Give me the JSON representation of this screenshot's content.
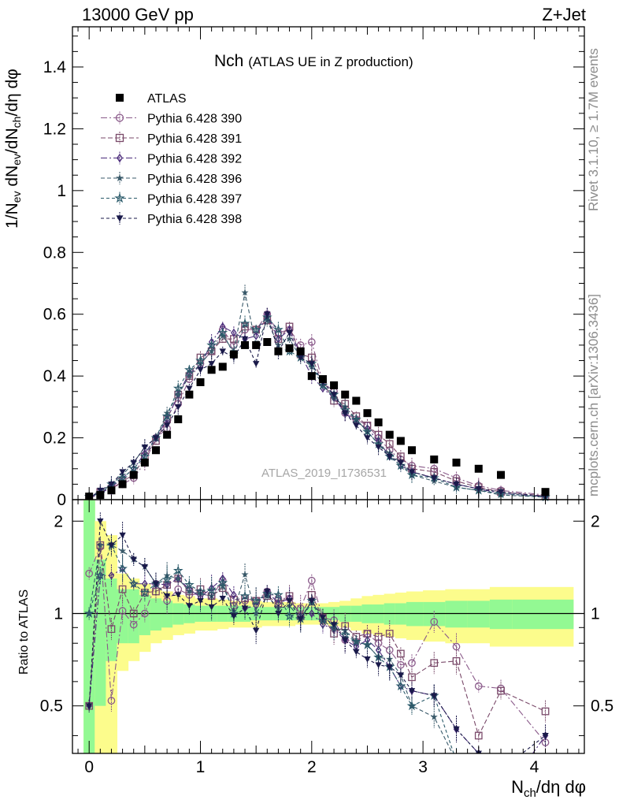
{
  "header": {
    "left": "13000 GeV pp",
    "right": "Z+Jet"
  },
  "plot_title": {
    "main": "Nch",
    "sub": "(ATLAS UE in Z production)"
  },
  "side_labels": {
    "rivet": "Rivet 3.1.10, ≥ 1.7M events",
    "mcplots": "mcplots.cern.ch [arXiv:1306.3436]"
  },
  "analysis_id": "ATLAS_2019_I1736531",
  "axes": {
    "ylabel_main": {
      "p1": "1/N",
      "s1": "ev",
      "p2": " dN",
      "s2": "ev",
      "p3": "/dN",
      "s3": "ch",
      "p4": "/dη dφ"
    },
    "ylabel_ratio": "Ratio to ATLAS",
    "xlabel": {
      "p1": "N",
      "s1": "ch",
      "p2": "/dη dφ"
    }
  },
  "colors": {
    "data": "#000000",
    "band_inner": "#93f993",
    "band_outer": "#fcfc8c",
    "s390": "#8a5a8a",
    "s391": "#7a4a6a",
    "s392": "#4a2a7a",
    "s396": "#3a5a6a",
    "s397": "#2a5a6a",
    "s398": "#1a1a4a"
  },
  "chart_data": {
    "type": "scatter",
    "title": "Nch (ATLAS UE in Z production)",
    "xlabel": "Nch/dη dφ",
    "ylabel": "1/Nev dNev/dNch/dη dφ",
    "xlim": [
      -0.15,
      4.45
    ],
    "ylim": [
      0,
      1.53
    ],
    "ratio_ylim": [
      0.35,
      2.35
    ],
    "x_ticks": [
      0,
      1,
      2,
      3,
      4
    ],
    "y_ticks": [
      0,
      0.2,
      0.4,
      0.6,
      0.8,
      1,
      1.2,
      1.4
    ],
    "ratio_ticks": [
      0.5,
      1,
      2
    ],
    "x": [
      0.0,
      0.1,
      0.2,
      0.3,
      0.4,
      0.5,
      0.6,
      0.7,
      0.8,
      0.9,
      1.0,
      1.1,
      1.2,
      1.3,
      1.4,
      1.5,
      1.6,
      1.7,
      1.8,
      1.9,
      2.0,
      2.1,
      2.2,
      2.3,
      2.4,
      2.5,
      2.6,
      2.7,
      2.8,
      2.9,
      3.1,
      3.3,
      3.5,
      3.7,
      4.1
    ],
    "series": [
      {
        "name": "ATLAS",
        "style": "square",
        "values": [
          0.01,
          0.015,
          0.03,
          0.05,
          0.08,
          0.12,
          0.16,
          0.21,
          0.26,
          0.34,
          0.38,
          0.42,
          0.43,
          0.47,
          0.5,
          0.5,
          0.51,
          0.48,
          0.49,
          0.48,
          0.4,
          0.39,
          0.37,
          0.34,
          0.32,
          0.28,
          0.25,
          0.21,
          0.19,
          0.16,
          0.13,
          0.12,
          0.1,
          0.08,
          0.025
        ]
      },
      {
        "name": "Pythia 6.428 390",
        "style": "circle",
        "colorKey": "s390",
        "dash": "8 3 2 3",
        "values": [
          0.005,
          0.025,
          0.04,
          0.05,
          0.07,
          0.12,
          0.2,
          0.23,
          0.31,
          0.39,
          0.44,
          0.48,
          0.55,
          0.5,
          0.55,
          0.55,
          0.6,
          0.54,
          0.55,
          0.5,
          0.51,
          0.38,
          0.35,
          0.28,
          0.26,
          0.24,
          0.2,
          0.16,
          0.13,
          0.11,
          0.1,
          0.07,
          0.045,
          0.03,
          0.015
        ]
      },
      {
        "name": "Pythia 6.428 391",
        "style": "square-open",
        "colorKey": "s391",
        "dash": "6 3",
        "values": [
          0.005,
          0.025,
          0.035,
          0.06,
          0.08,
          0.14,
          0.19,
          0.26,
          0.34,
          0.4,
          0.46,
          0.48,
          0.52,
          0.52,
          0.56,
          0.55,
          0.58,
          0.52,
          0.56,
          0.47,
          0.46,
          0.38,
          0.32,
          0.31,
          0.27,
          0.24,
          0.21,
          0.18,
          0.14,
          0.1,
          0.09,
          0.06,
          0.04,
          0.025,
          0.012
        ]
      },
      {
        "name": "Pythia 6.428 392",
        "style": "diamond",
        "colorKey": "s392",
        "dash": "8 3 2 3",
        "values": [
          0.005,
          0.02,
          0.04,
          0.07,
          0.1,
          0.15,
          0.2,
          0.26,
          0.34,
          0.41,
          0.43,
          0.51,
          0.56,
          0.54,
          0.52,
          0.53,
          0.6,
          0.52,
          0.55,
          0.47,
          0.4,
          0.36,
          0.33,
          0.28,
          0.25,
          0.23,
          0.19,
          0.14,
          0.11,
          0.09,
          0.07,
          0.05,
          0.035,
          0.02,
          0.01
        ]
      },
      {
        "name": "Pythia 6.428 396",
        "style": "star",
        "colorKey": "s396",
        "dash": "5 3",
        "values": [
          0.01,
          0.025,
          0.05,
          0.08,
          0.12,
          0.17,
          0.2,
          0.28,
          0.34,
          0.4,
          0.44,
          0.48,
          0.53,
          0.48,
          0.67,
          0.5,
          0.58,
          0.5,
          0.52,
          0.46,
          0.43,
          0.37,
          0.33,
          0.3,
          0.26,
          0.22,
          0.18,
          0.15,
          0.12,
          0.08,
          0.06,
          0.04,
          0.03,
          0.015,
          0.008
        ]
      },
      {
        "name": "Pythia 6.428 397",
        "style": "star-open",
        "colorKey": "s397",
        "dash": "4 3",
        "values": [
          0.01,
          0.02,
          0.05,
          0.07,
          0.1,
          0.14,
          0.2,
          0.27,
          0.36,
          0.42,
          0.45,
          0.5,
          0.54,
          0.47,
          0.57,
          0.55,
          0.59,
          0.55,
          0.48,
          0.46,
          0.44,
          0.37,
          0.34,
          0.29,
          0.26,
          0.22,
          0.18,
          0.14,
          0.11,
          0.08,
          0.07,
          0.04,
          0.03,
          0.02,
          0.008
        ]
      },
      {
        "name": "Pythia 6.428 398",
        "style": "triangle-down",
        "colorKey": "s398",
        "dash": "4 3",
        "values": [
          0.005,
          0.03,
          0.05,
          0.09,
          0.12,
          0.17,
          0.2,
          0.24,
          0.3,
          0.36,
          0.42,
          0.44,
          0.48,
          0.46,
          0.52,
          0.44,
          0.6,
          0.48,
          0.54,
          0.46,
          0.44,
          0.38,
          0.34,
          0.28,
          0.24,
          0.2,
          0.17,
          0.14,
          0.12,
          0.09,
          0.07,
          0.05,
          0.035,
          0.025,
          0.01
        ]
      }
    ],
    "ratio_series": [
      {
        "name": "Pythia 6.428 390",
        "values": [
          1.35,
          1.65,
          0.52,
          1.02,
          0.92,
          1.0,
          1.25,
          1.1,
          1.2,
          1.15,
          1.16,
          1.14,
          1.28,
          1.06,
          1.1,
          1.1,
          1.18,
          1.12,
          1.12,
          1.04,
          1.28,
          0.97,
          0.95,
          0.82,
          0.81,
          0.86,
          0.8,
          0.76,
          0.68,
          0.69,
          0.94,
          0.78,
          0.58,
          0.57,
          0.38
        ]
      },
      {
        "name": "Pythia 6.428 391",
        "values": [
          0.5,
          1.67,
          0.89,
          1.2,
          1.0,
          1.17,
          1.18,
          1.24,
          1.3,
          1.18,
          1.2,
          1.14,
          1.21,
          1.11,
          1.12,
          1.1,
          1.14,
          1.08,
          1.14,
          0.98,
          1.15,
          0.97,
          0.86,
          0.91,
          0.84,
          0.86,
          0.84,
          0.86,
          0.74,
          0.62,
          0.69,
          0.7,
          0.4,
          0.56,
          0.48
        ]
      },
      {
        "name": "Pythia 6.428 392",
        "values": [
          0.5,
          1.33,
          1.33,
          1.4,
          1.25,
          1.25,
          1.25,
          1.24,
          1.3,
          1.2,
          1.13,
          1.21,
          1.3,
          1.15,
          1.04,
          1.06,
          1.18,
          1.08,
          1.12,
          0.98,
          1.0,
          0.92,
          0.89,
          0.82,
          0.78,
          0.82,
          0.76,
          0.67,
          0.58,
          0.56,
          0.54,
          0.42,
          0.35,
          0.25,
          0.4
        ]
      },
      {
        "name": "Pythia 6.428 396",
        "values": [
          1.0,
          1.67,
          1.67,
          1.6,
          1.5,
          1.42,
          1.25,
          1.33,
          1.3,
          1.18,
          1.16,
          1.14,
          1.23,
          1.02,
          1.34,
          1.0,
          1.14,
          1.04,
          1.06,
          0.96,
          1.08,
          0.95,
          0.89,
          0.88,
          0.81,
          0.79,
          0.72,
          0.71,
          0.63,
          0.5,
          0.46,
          0.33,
          0.3,
          0.19,
          0.32
        ]
      },
      {
        "name": "Pythia 6.428 397",
        "values": [
          1.0,
          1.33,
          1.67,
          1.4,
          1.25,
          1.17,
          1.25,
          1.29,
          1.38,
          1.24,
          1.18,
          1.19,
          1.26,
          1.0,
          1.14,
          1.1,
          1.16,
          1.15,
          0.98,
          0.96,
          1.1,
          0.95,
          0.92,
          0.85,
          0.81,
          0.79,
          0.72,
          0.67,
          0.58,
          0.5,
          0.54,
          0.33,
          0.3,
          0.25,
          0.32
        ]
      },
      {
        "name": "Pythia 6.428 398",
        "values": [
          0.5,
          2.0,
          1.67,
          1.8,
          1.5,
          1.42,
          1.25,
          1.14,
          1.15,
          1.06,
          1.1,
          1.05,
          1.12,
          0.98,
          1.04,
          0.88,
          1.18,
          1.0,
          1.1,
          0.96,
          1.1,
          0.97,
          0.92,
          0.82,
          0.75,
          0.71,
          0.68,
          0.67,
          0.63,
          0.56,
          0.54,
          0.42,
          0.35,
          0.31,
          0.4
        ]
      }
    ],
    "band_edges": [
      -0.05,
      0.05,
      0.15,
      0.25,
      0.35,
      0.45,
      0.55,
      0.65,
      0.75,
      0.85,
      0.95,
      1.05,
      1.15,
      1.25,
      1.35,
      1.45,
      1.55,
      1.65,
      1.75,
      1.85,
      1.95,
      2.05,
      2.15,
      2.25,
      2.35,
      2.45,
      2.55,
      2.65,
      2.75,
      2.85,
      3.0,
      3.2,
      3.4,
      3.6,
      3.8,
      4.35
    ],
    "band_inner_half": [
      2.0,
      0.5,
      0.3,
      0.2,
      0.2,
      0.15,
      0.12,
      0.1,
      0.08,
      0.07,
      0.06,
      0.06,
      0.06,
      0.06,
      0.06,
      0.05,
      0.05,
      0.05,
      0.05,
      0.05,
      0.05,
      0.05,
      0.05,
      0.06,
      0.06,
      0.07,
      0.07,
      0.08,
      0.08,
      0.09,
      0.09,
      0.1,
      0.1,
      0.11,
      0.11
    ],
    "band_outer_half": [
      2.0,
      1.0,
      0.8,
      0.35,
      0.3,
      0.25,
      0.2,
      0.18,
      0.15,
      0.14,
      0.12,
      0.12,
      0.11,
      0.1,
      0.1,
      0.1,
      0.09,
      0.09,
      0.09,
      0.08,
      0.08,
      0.08,
      0.09,
      0.1,
      0.12,
      0.14,
      0.15,
      0.16,
      0.17,
      0.18,
      0.19,
      0.2,
      0.2,
      0.22,
      0.22
    ]
  }
}
